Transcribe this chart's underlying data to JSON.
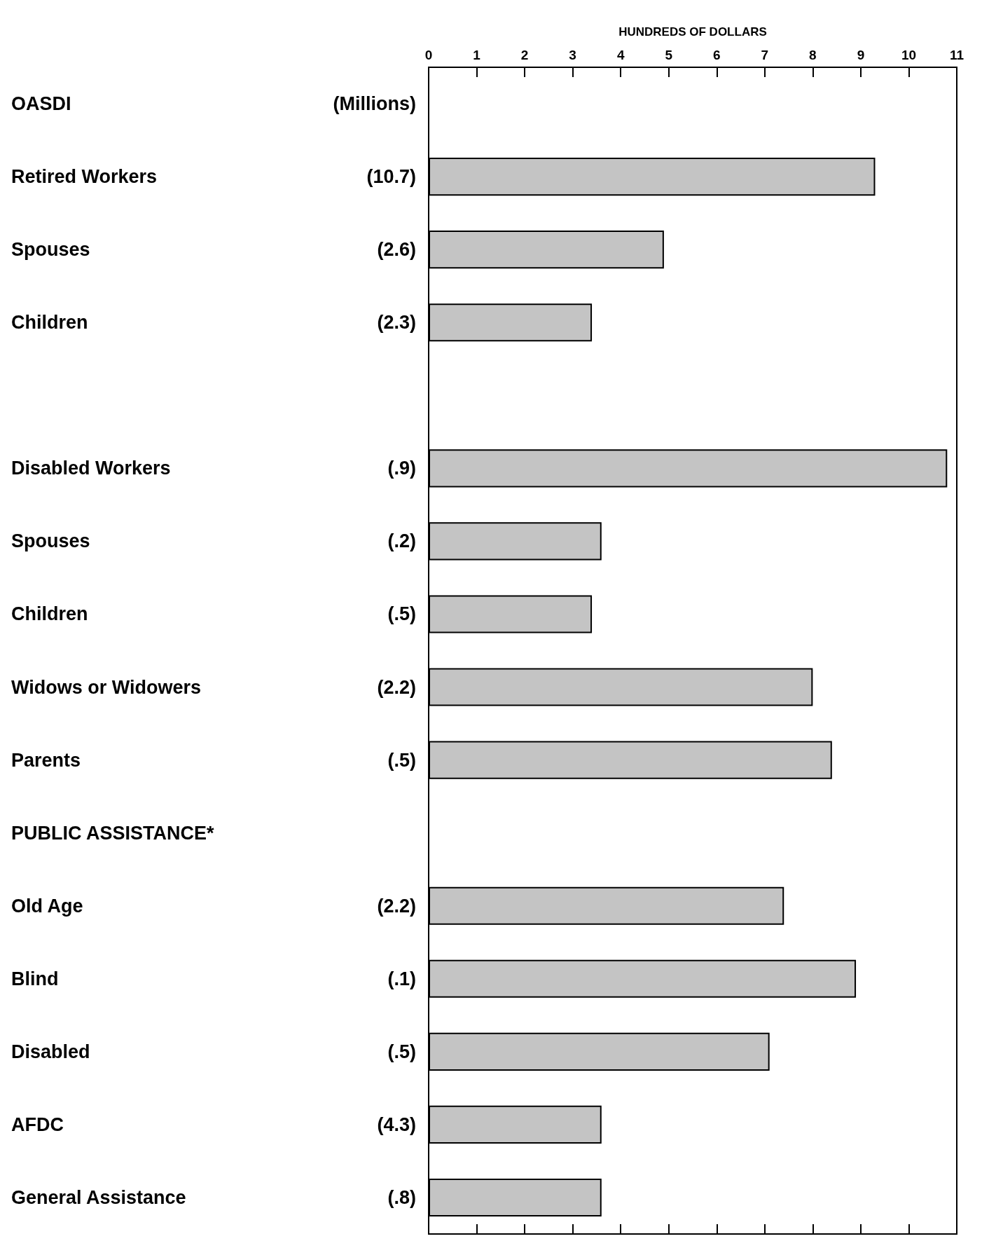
{
  "chart_data": {
    "type": "bar",
    "orientation": "horizontal",
    "categories": [
      "OASDI",
      "Retired Workers",
      "Spouses",
      "Children",
      null,
      "Disabled Workers",
      "Spouses",
      "Children",
      "Widows or Widowers",
      "Parents",
      "PUBLIC ASSISTANCE*",
      "Old Age",
      "Blind",
      "Disabled",
      "AFDC",
      "General Assistance"
    ],
    "y2_categories": [
      "(Millions)",
      "(10.7)",
      "(2.6)",
      "(2.3)",
      null,
      "(.9)",
      "(.2)",
      "(.5)",
      "(2.2)",
      "(.5)",
      null,
      "(2.2)",
      "(.1)",
      "(.5)",
      "(4.3)",
      "(.8)"
    ],
    "series": [
      {
        "axis": "x2",
        "color": "#c4c4c4",
        "values": [
          null,
          9.3,
          4.9,
          3.4,
          null,
          10.8,
          3.6,
          3.4,
          8.0,
          8.4,
          null,
          7.4,
          8.9,
          7.1,
          3.6,
          3.6
        ]
      }
    ],
    "x2lim": [
      0,
      11
    ],
    "x2ticks": [
      0,
      1,
      2,
      3,
      4,
      5,
      6,
      7,
      8,
      9,
      10,
      11
    ],
    "x2label": "HUNDREDS OF DOLLARS",
    "grid": false
  }
}
